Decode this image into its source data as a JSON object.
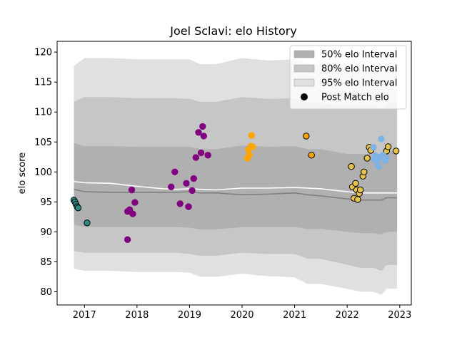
{
  "chart_data": {
    "type": "scatter",
    "title": "Joel Sclavi: elo History",
    "xlabel": "",
    "ylabel": "elo score",
    "xlim": [
      2016.48,
      2023.22
    ],
    "ylim": [
      77.8,
      121.8
    ],
    "x_ticks": [
      2017,
      2018,
      2019,
      2020,
      2021,
      2022,
      2023
    ],
    "x_tick_labels": [
      "2017",
      "2018",
      "2019",
      "2020",
      "2021",
      "2022",
      "2023"
    ],
    "y_ticks": [
      80,
      85,
      90,
      95,
      100,
      105,
      110,
      115,
      120
    ],
    "y_tick_labels": [
      "80",
      "85",
      "90",
      "95",
      "100",
      "105",
      "110",
      "115",
      "120"
    ],
    "grid": false,
    "legend_position": "top-right",
    "legend": [
      {
        "label": "50% elo Interval",
        "kind": "patch",
        "color": "#b0b0b0"
      },
      {
        "label": "80% elo Interval",
        "kind": "patch",
        "color": "#c6c6c6"
      },
      {
        "label": "95% elo Interval",
        "kind": "patch",
        "color": "#e0e0e0"
      },
      {
        "label": "Post Match elo",
        "kind": "marker",
        "color": "#000000"
      }
    ],
    "band_x": [
      2016.8,
      2017.0,
      2017.5,
      2018.0,
      2018.5,
      2018.75,
      2019.0,
      2019.2,
      2019.5,
      2020.0,
      2020.5,
      2021.0,
      2021.25,
      2021.5,
      2022.0,
      2022.25,
      2022.5,
      2022.65,
      2022.75,
      2022.95
    ],
    "bands": [
      {
        "name": "95% elo Interval",
        "color": "#e0e0e0",
        "upper": [
          117.7,
          119.0,
          119.0,
          118.8,
          118.8,
          118.8,
          118.8,
          118.0,
          118.0,
          119.0,
          118.6,
          118.8,
          118.0,
          118.0,
          117.0,
          117.0,
          117.0,
          116.5,
          117.5,
          117.5
        ],
        "lower": [
          83.9,
          83.5,
          83.5,
          83.3,
          83.3,
          83.3,
          83.2,
          82.5,
          82.5,
          83.0,
          82.6,
          82.4,
          81.3,
          81.3,
          80.5,
          80.0,
          80.0,
          79.5,
          80.5,
          80.5
        ]
      },
      {
        "name": "80% elo Interval",
        "color": "#c6c6c6",
        "upper": [
          111.7,
          112.5,
          112.5,
          112.3,
          112.3,
          112.3,
          112.2,
          111.7,
          111.7,
          112.5,
          112.2,
          112.3,
          111.5,
          111.5,
          111.0,
          111.0,
          111.0,
          110.5,
          111.5,
          111.5
        ],
        "lower": [
          86.8,
          86.5,
          86.5,
          86.5,
          86.5,
          86.5,
          86.3,
          86.0,
          86.0,
          86.5,
          86.3,
          86.3,
          85.5,
          85.5,
          84.5,
          84.0,
          84.0,
          83.5,
          84.5,
          84.5
        ]
      },
      {
        "name": "50% elo Interval",
        "color": "#b0b0b0",
        "upper": [
          104.8,
          104.3,
          104.3,
          104.2,
          104.2,
          104.2,
          104.2,
          103.8,
          103.8,
          104.4,
          104.2,
          104.3,
          103.8,
          103.8,
          103.0,
          103.0,
          103.0,
          102.5,
          103.5,
          103.5
        ],
        "lower": [
          91.2,
          90.8,
          90.8,
          90.8,
          90.8,
          90.8,
          90.7,
          90.4,
          90.4,
          90.8,
          90.8,
          90.8,
          90.5,
          90.5,
          90.0,
          89.8,
          89.8,
          89.6,
          90.0,
          90.0
        ]
      }
    ],
    "mean_line": {
      "color": "#ffffff",
      "y": [
        98.4,
        98.2,
        98.1,
        97.6,
        97.2,
        97.1,
        97.2,
        97.1,
        97.0,
        97.3,
        97.3,
        97.4,
        97.3,
        97.2,
        96.7,
        96.5,
        96.5,
        96.5,
        96.5,
        96.5
      ]
    },
    "median_line": {
      "color": "#808080",
      "y": [
        97.1,
        96.7,
        96.6,
        96.6,
        96.6,
        96.6,
        96.7,
        96.5,
        96.5,
        96.2,
        96.3,
        96.5,
        96.2,
        96.0,
        95.5,
        95.3,
        95.3,
        95.3,
        95.7,
        95.7
      ]
    },
    "series": [
      {
        "name": "",
        "color": "#2e8b84",
        "edge": "#000000",
        "points": [
          [
            2016.8,
            95.3
          ],
          [
            2016.82,
            95.0
          ],
          [
            2016.84,
            94.6
          ],
          [
            2016.86,
            94.2
          ],
          [
            2016.88,
            94.0
          ],
          [
            2017.05,
            91.5
          ]
        ]
      },
      {
        "name": "",
        "color": "#800080",
        "edge": "#800080",
        "points": [
          [
            2017.82,
            88.7
          ],
          [
            2017.82,
            93.4
          ],
          [
            2017.86,
            93.7
          ],
          [
            2017.9,
            97.0
          ],
          [
            2017.92,
            93.0
          ],
          [
            2017.96,
            94.9
          ],
          [
            2018.65,
            97.5
          ],
          [
            2018.72,
            100.0
          ],
          [
            2018.82,
            94.7
          ],
          [
            2018.94,
            98.1
          ],
          [
            2018.98,
            94.2
          ],
          [
            2019.05,
            96.9
          ],
          [
            2019.08,
            98.9
          ],
          [
            2019.12,
            102.4
          ],
          [
            2019.17,
            106.6
          ],
          [
            2019.22,
            103.2
          ],
          [
            2019.25,
            107.6
          ],
          [
            2019.27,
            106.0
          ],
          [
            2019.35,
            102.8
          ]
        ]
      },
      {
        "name": "",
        "color": "#ffa500",
        "edge": "#ffa500",
        "points": [
          [
            2020.1,
            102.3
          ],
          [
            2020.12,
            103.7
          ],
          [
            2020.14,
            102.8
          ],
          [
            2020.17,
            104.3
          ],
          [
            2020.18,
            106.1
          ],
          [
            2020.2,
            104.2
          ]
        ]
      },
      {
        "name": "",
        "color": "#ffa500",
        "edge": "#000000",
        "points": [
          [
            2021.22,
            106.0
          ],
          [
            2021.32,
            102.8
          ]
        ]
      },
      {
        "name": "",
        "color": "#e6c34a",
        "edge": "#000000",
        "points": [
          [
            2022.08,
            100.9
          ],
          [
            2022.1,
            97.5
          ],
          [
            2022.13,
            95.6
          ],
          [
            2022.16,
            98.1
          ],
          [
            2022.18,
            97.0
          ],
          [
            2022.2,
            95.4
          ],
          [
            2022.23,
            96.4
          ],
          [
            2022.25,
            97.0
          ],
          [
            2022.3,
            99.3
          ],
          [
            2022.32,
            100.0
          ],
          [
            2022.38,
            102.3
          ],
          [
            2022.42,
            104.1
          ],
          [
            2022.45,
            103.6
          ],
          [
            2022.75,
            103.5
          ],
          [
            2022.78,
            104.2
          ],
          [
            2022.93,
            103.5
          ]
        ]
      },
      {
        "name": "",
        "color": "#7fb2e5",
        "edge": "#7fb2e5",
        "points": [
          [
            2022.5,
            104.1
          ],
          [
            2022.52,
            102.1
          ],
          [
            2022.54,
            102.7
          ],
          [
            2022.57,
            101.8
          ],
          [
            2022.6,
            100.9
          ],
          [
            2022.62,
            102.4
          ],
          [
            2022.65,
            105.5
          ],
          [
            2022.68,
            102.8
          ],
          [
            2022.72,
            101.9
          ],
          [
            2022.74,
            102.3
          ]
        ]
      }
    ]
  }
}
